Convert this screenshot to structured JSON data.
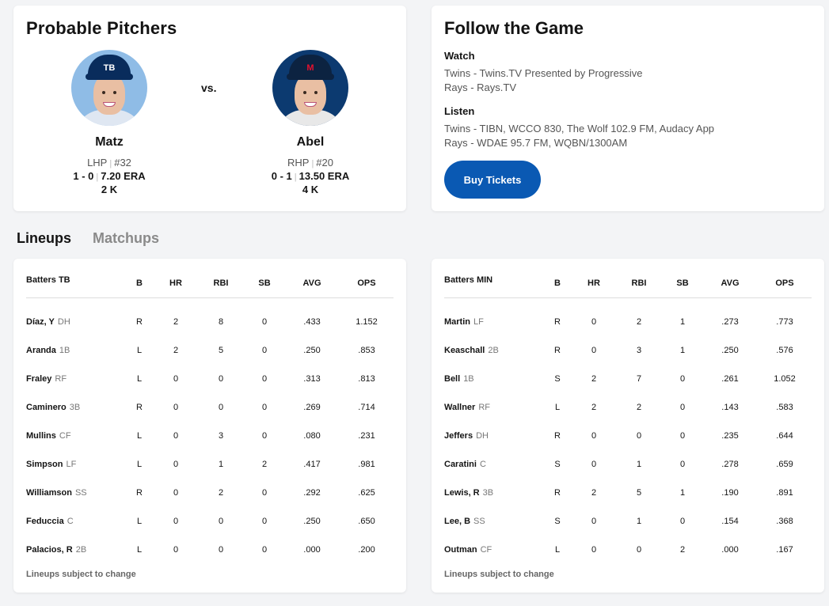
{
  "probable_pitchers": {
    "title": "Probable Pitchers",
    "vs": "vs.",
    "away": {
      "name": "Matz",
      "throws": "LHP",
      "number": "#32",
      "record": "1 - 0",
      "era": "7.20 ERA",
      "strikeouts": "2 K",
      "cap_logo": "TB",
      "team_color": "#092c5c",
      "bg_color": "#8fbce6"
    },
    "home": {
      "name": "Abel",
      "throws": "RHP",
      "number": "#20",
      "record": "0 - 1",
      "era": "13.50 ERA",
      "strikeouts": "4 K",
      "cap_logo": "M",
      "team_color": "#0c2341",
      "bg_color": "#0c3a70"
    }
  },
  "follow_the_game": {
    "title": "Follow the Game",
    "watch_label": "Watch",
    "watch": [
      "Twins - Twins.TV Presented by Progressive",
      "Rays - Rays.TV"
    ],
    "listen_label": "Listen",
    "listen": [
      "Twins - TIBN, WCCO 830, The Wolf 102.9 FM, Audacy App",
      "Rays - WDAE 95.7 FM, WQBN/1300AM"
    ],
    "buy_tickets": "Buy Tickets"
  },
  "tabs": {
    "lineups": "Lineups",
    "matchups": "Matchups"
  },
  "columns": [
    "B",
    "HR",
    "RBI",
    "SB",
    "AVG",
    "OPS"
  ],
  "lineups": [
    {
      "header": "Batters TB",
      "rows": [
        {
          "name": "Díaz, Y",
          "pos": "DH",
          "b": "R",
          "hr": "2",
          "rbi": "8",
          "sb": "0",
          "avg": ".433",
          "ops": "1.152"
        },
        {
          "name": "Aranda",
          "pos": "1B",
          "b": "L",
          "hr": "2",
          "rbi": "5",
          "sb": "0",
          "avg": ".250",
          "ops": ".853"
        },
        {
          "name": "Fraley",
          "pos": "RF",
          "b": "L",
          "hr": "0",
          "rbi": "0",
          "sb": "0",
          "avg": ".313",
          "ops": ".813"
        },
        {
          "name": "Caminero",
          "pos": "3B",
          "b": "R",
          "hr": "0",
          "rbi": "0",
          "sb": "0",
          "avg": ".269",
          "ops": ".714"
        },
        {
          "name": "Mullins",
          "pos": "CF",
          "b": "L",
          "hr": "0",
          "rbi": "3",
          "sb": "0",
          "avg": ".080",
          "ops": ".231"
        },
        {
          "name": "Simpson",
          "pos": "LF",
          "b": "L",
          "hr": "0",
          "rbi": "1",
          "sb": "2",
          "avg": ".417",
          "ops": ".981"
        },
        {
          "name": "Williamson",
          "pos": "SS",
          "b": "R",
          "hr": "0",
          "rbi": "2",
          "sb": "0",
          "avg": ".292",
          "ops": ".625"
        },
        {
          "name": "Feduccia",
          "pos": "C",
          "b": "L",
          "hr": "0",
          "rbi": "0",
          "sb": "0",
          "avg": ".250",
          "ops": ".650"
        },
        {
          "name": "Palacios, R",
          "pos": "2B",
          "b": "L",
          "hr": "0",
          "rbi": "0",
          "sb": "0",
          "avg": ".000",
          "ops": ".200"
        }
      ],
      "footnote": "Lineups subject to change"
    },
    {
      "header": "Batters MIN",
      "rows": [
        {
          "name": "Martin",
          "pos": "LF",
          "b": "R",
          "hr": "0",
          "rbi": "2",
          "sb": "1",
          "avg": ".273",
          "ops": ".773"
        },
        {
          "name": "Keaschall",
          "pos": "2B",
          "b": "R",
          "hr": "0",
          "rbi": "3",
          "sb": "1",
          "avg": ".250",
          "ops": ".576"
        },
        {
          "name": "Bell",
          "pos": "1B",
          "b": "S",
          "hr": "2",
          "rbi": "7",
          "sb": "0",
          "avg": ".261",
          "ops": "1.052"
        },
        {
          "name": "Wallner",
          "pos": "RF",
          "b": "L",
          "hr": "2",
          "rbi": "2",
          "sb": "0",
          "avg": ".143",
          "ops": ".583"
        },
        {
          "name": "Jeffers",
          "pos": "DH",
          "b": "R",
          "hr": "0",
          "rbi": "0",
          "sb": "0",
          "avg": ".235",
          "ops": ".644"
        },
        {
          "name": "Caratini",
          "pos": "C",
          "b": "S",
          "hr": "0",
          "rbi": "1",
          "sb": "0",
          "avg": ".278",
          "ops": ".659"
        },
        {
          "name": "Lewis, R",
          "pos": "3B",
          "b": "R",
          "hr": "2",
          "rbi": "5",
          "sb": "1",
          "avg": ".190",
          "ops": ".891"
        },
        {
          "name": "Lee, B",
          "pos": "SS",
          "b": "S",
          "hr": "0",
          "rbi": "1",
          "sb": "0",
          "avg": ".154",
          "ops": ".368"
        },
        {
          "name": "Outman",
          "pos": "CF",
          "b": "L",
          "hr": "0",
          "rbi": "0",
          "sb": "2",
          "avg": ".000",
          "ops": ".167"
        }
      ],
      "footnote": "Lineups subject to change"
    }
  ]
}
